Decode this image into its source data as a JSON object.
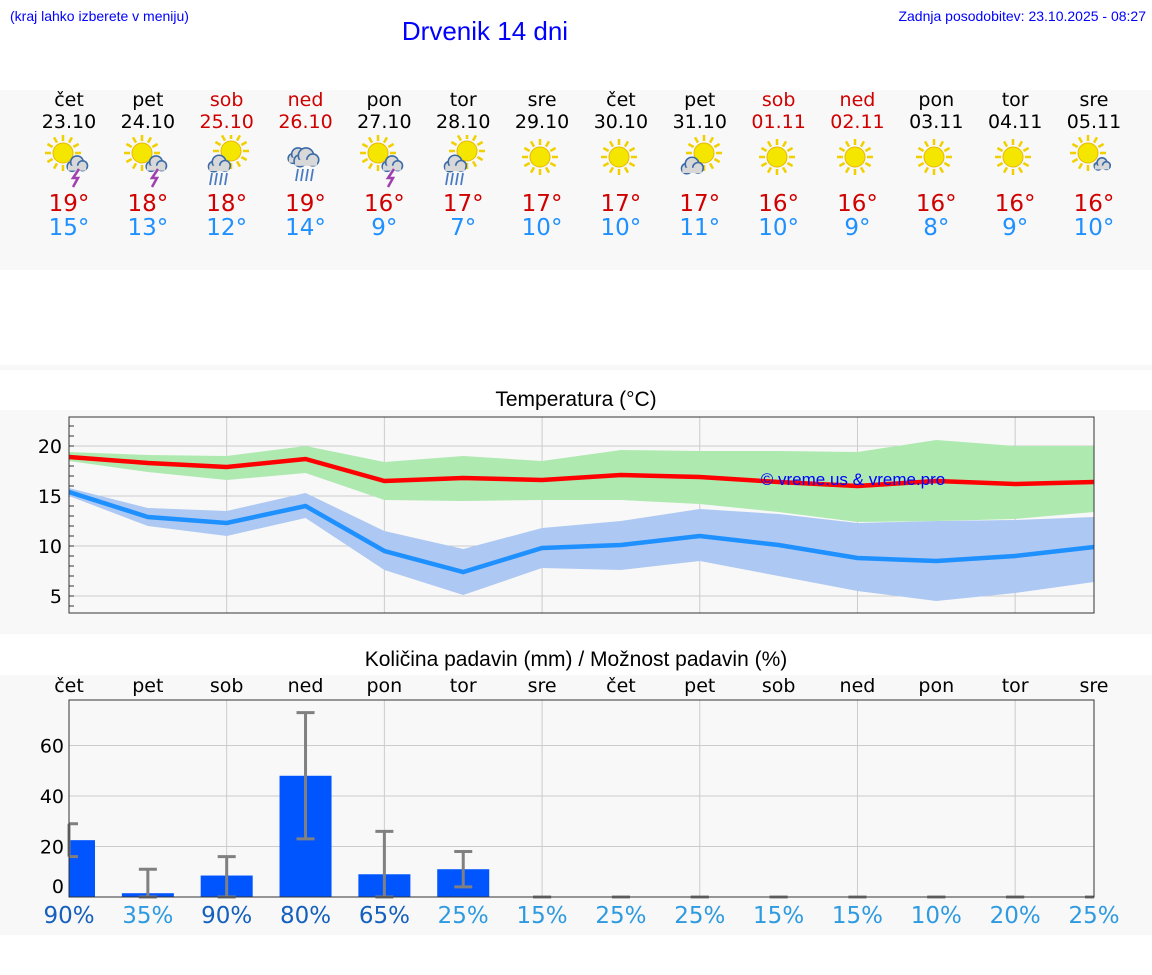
{
  "header": {
    "hint": "(kraj lahko izberete v meniju)",
    "title": "Drvenik 14 dni",
    "updated": "Zadnja posodobitev: 23.10.2025 - 08:27"
  },
  "colors": {
    "weekend": "#d00000",
    "max": "#ff0000",
    "min": "#1e90ff",
    "max_band": "#aee9b0",
    "min_band": "#adc8f2",
    "bar": "#0055ff",
    "err": "#808080"
  },
  "days": [
    {
      "name": "čet",
      "date": "23.10",
      "weekend": false,
      "icon": "sun-thunderstorm-icon",
      "max": "19°",
      "min": "15°"
    },
    {
      "name": "pet",
      "date": "24.10",
      "weekend": false,
      "icon": "sun-thunderstorm-icon",
      "max": "18°",
      "min": "13°"
    },
    {
      "name": "sob",
      "date": "25.10",
      "weekend": true,
      "icon": "sun-rain-icon",
      "max": "18°",
      "min": "12°"
    },
    {
      "name": "ned",
      "date": "26.10",
      "weekend": true,
      "icon": "cloud-rain-icon",
      "max": "19°",
      "min": "14°"
    },
    {
      "name": "pon",
      "date": "27.10",
      "weekend": false,
      "icon": "sun-thunderstorm-icon",
      "max": "16°",
      "min": "9°"
    },
    {
      "name": "tor",
      "date": "28.10",
      "weekend": false,
      "icon": "sun-rain-icon",
      "max": "17°",
      "min": "7°"
    },
    {
      "name": "sre",
      "date": "29.10",
      "weekend": false,
      "icon": "sun-icon",
      "max": "17°",
      "min": "10°"
    },
    {
      "name": "čet",
      "date": "30.10",
      "weekend": false,
      "icon": "sun-icon",
      "max": "17°",
      "min": "10°"
    },
    {
      "name": "pet",
      "date": "31.10",
      "weekend": false,
      "icon": "sun-cloud-icon",
      "max": "17°",
      "min": "11°"
    },
    {
      "name": "sob",
      "date": "01.11",
      "weekend": true,
      "icon": "sun-icon",
      "max": "16°",
      "min": "10°"
    },
    {
      "name": "ned",
      "date": "02.11",
      "weekend": true,
      "icon": "sun-icon",
      "max": "16°",
      "min": "9°"
    },
    {
      "name": "pon",
      "date": "03.11",
      "weekend": false,
      "icon": "sun-icon",
      "max": "16°",
      "min": "8°"
    },
    {
      "name": "tor",
      "date": "04.11",
      "weekend": false,
      "icon": "sun-icon",
      "max": "16°",
      "min": "9°"
    },
    {
      "name": "sre",
      "date": "05.11",
      "weekend": false,
      "icon": "sun-small-cloud-icon",
      "max": "16°",
      "min": "10°"
    }
  ],
  "chart_data": [
    {
      "type": "line",
      "title": "Temperatura (°C)",
      "watermark": "© vreme.us & vreme.pro",
      "ylim": [
        3.3,
        22.9
      ],
      "yticks": [
        5,
        10,
        15,
        20
      ],
      "x": [
        0,
        1,
        2,
        3,
        4,
        5,
        6,
        7,
        8,
        9,
        10,
        11,
        12,
        13
      ],
      "series": [
        {
          "name": "max",
          "values": [
            18.9,
            18.3,
            17.9,
            18.7,
            16.5,
            16.8,
            16.6,
            17.1,
            16.9,
            16.4,
            16.0,
            16.5,
            16.2,
            16.4
          ],
          "band_low": [
            18.5,
            17.4,
            16.6,
            17.3,
            14.6,
            14.5,
            14.6,
            14.6,
            14.2,
            13.4,
            12.4,
            12.5,
            12.7,
            13.4
          ],
          "band_high": [
            19.4,
            19.1,
            19.0,
            20.0,
            18.4,
            19.0,
            18.5,
            19.6,
            19.5,
            19.5,
            19.4,
            20.6,
            20.0,
            20.0
          ]
        },
        {
          "name": "min",
          "values": [
            15.4,
            12.9,
            12.3,
            14.0,
            9.5,
            7.4,
            9.8,
            10.1,
            11.0,
            10.1,
            8.8,
            8.5,
            9.0,
            9.9
          ],
          "band_low": [
            15.0,
            12.0,
            11.0,
            12.8,
            7.6,
            5.1,
            7.8,
            7.6,
            8.5,
            7.0,
            5.5,
            4.5,
            5.3,
            6.4
          ],
          "band_high": [
            15.8,
            13.8,
            13.5,
            15.3,
            11.5,
            9.7,
            11.8,
            12.5,
            13.7,
            13.2,
            12.3,
            12.5,
            12.6,
            12.9
          ]
        }
      ]
    },
    {
      "type": "bar",
      "title": "Količina padavin (mm) / Možnost padavin (%)",
      "ylim": [
        0,
        78
      ],
      "yticks": [
        0,
        20,
        40,
        60
      ],
      "categories": [
        "čet",
        "pet",
        "sob",
        "ned",
        "pon",
        "tor",
        "sre",
        "čet",
        "pet",
        "sob",
        "ned",
        "pon",
        "tor",
        "sre"
      ],
      "values": [
        22.5,
        1.5,
        8.5,
        48,
        9,
        11,
        0,
        0,
        0,
        0,
        0,
        0,
        0,
        0
      ],
      "err_low": [
        16,
        0,
        0,
        23,
        0,
        4,
        0,
        0,
        0,
        0,
        0,
        0,
        0,
        0
      ],
      "err_high": [
        29,
        11,
        16,
        73,
        26,
        18,
        0,
        0,
        0,
        0,
        0,
        0,
        0,
        0
      ],
      "probability": [
        "90%",
        "35%",
        "90%",
        "80%",
        "65%",
        "25%",
        "15%",
        "25%",
        "25%",
        "15%",
        "15%",
        "10%",
        "20%",
        "25%"
      ]
    }
  ]
}
